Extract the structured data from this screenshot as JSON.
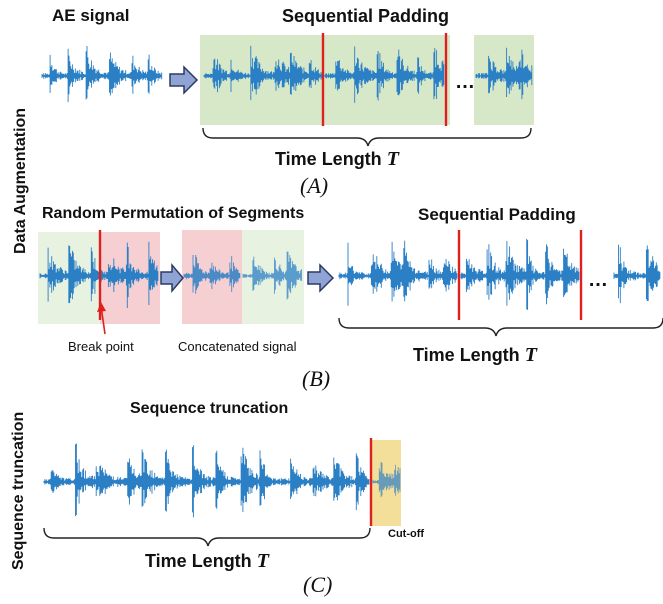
{
  "side_labels": {
    "augmentation": "Data Augmentation",
    "truncation": "Sequence truncation"
  },
  "panel_a": {
    "input_title": "AE signal",
    "output_title": "Sequential Padding",
    "time_length_text": "Time Length",
    "time_symbol": "T",
    "ellipsis": "…",
    "caption": "(A)"
  },
  "panel_b": {
    "permutation_title": "Random Permutation of Segments",
    "output_title": "Sequential Padding",
    "break_point": "Break point",
    "concatenated": "Concatenated signal",
    "time_length_text": "Time Length",
    "time_symbol": "T",
    "ellipsis": "…",
    "caption": "(B)"
  },
  "panel_c": {
    "title": "Sequence truncation",
    "cutoff": "Cut-off",
    "time_length_text": "Time Length",
    "time_symbol": "T",
    "caption": "(C)"
  },
  "colors": {
    "signal": "#2b7fc4",
    "padding_bg": "#d7e8c8",
    "segment_green": "#e8f2e0",
    "segment_pink": "#f6cfd2",
    "cutoff_bg": "#f3de9a",
    "separator": "#e01f1f",
    "arrow_fill": "#8fa3d4",
    "arrow_stroke": "#2c3a63"
  }
}
